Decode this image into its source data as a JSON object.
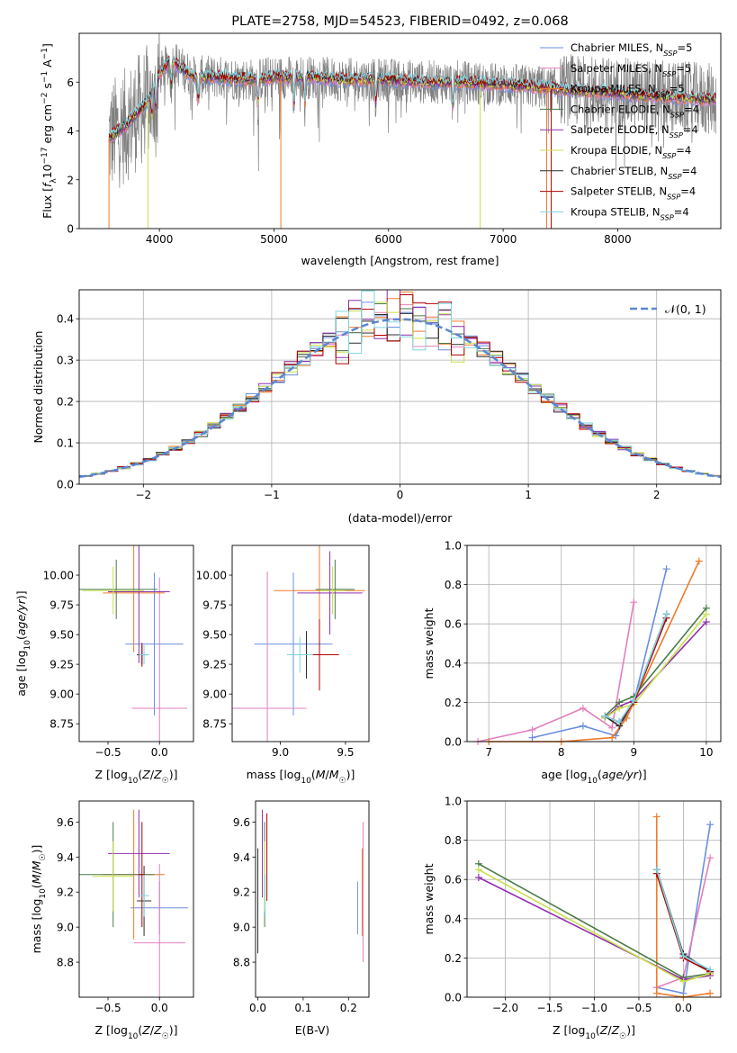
{
  "colors": {
    "Chabrier MILES": "#6a8fdf",
    "Salpeter MILES": "#e37fbd",
    "Kroupa MILES": "#f07b2a",
    "Chabrier ELODIE": "#4a7a4a",
    "Salpeter ELODIE": "#8f2fb0",
    "Kroupa ELODIE": "#c8e04a",
    "Chabrier STELIB": "#2b2b2b",
    "Salpeter STELIB": "#b00000",
    "Kroupa STELIB": "#7fd3df",
    "data_gray": "#808080",
    "normal_dashed": "#5b87d1"
  },
  "chart_data": [
    {
      "id": "spectrum",
      "type": "line",
      "title": "PLATE=2758, MJD=54523, FIBERID=0492, z=0.068",
      "xlabel": "wavelength [Angstrom, rest frame]",
      "ylabel": "Flux [f_λ 10^-17 erg cm^-2 s^-1 A^-1]",
      "xlim": [
        3300,
        8900
      ],
      "ylim": [
        0,
        8
      ],
      "xticks": [
        "4000",
        "5000",
        "6000",
        "7000",
        "8000"
      ],
      "yticks": [
        "0",
        "2",
        "4",
        "6"
      ],
      "legend_position": "top-right",
      "legend": [
        "Chabrier MILES, N_SSP=5",
        "Salpeter MILES, N_SSP=5",
        "Kroupa MILES, N_SSP=5",
        "Chabrier ELODIE, N_SSP=4",
        "Salpeter ELODIE, N_SSP=4",
        "Kroupa ELODIE, N_SSP=4",
        "Chabrier STELIB, N_SSP=4",
        "Salpeter STELIB, N_SSP=4",
        "Kroupa STELIB, N_SSP=4"
      ],
      "model_continuum": {
        "x": [
          3550,
          3700,
          3900,
          4000,
          4100,
          4300,
          4500,
          4800,
          5000,
          5300,
          5600,
          6000,
          6300,
          6600,
          7000,
          7300,
          7500,
          7800,
          8100,
          8400,
          8800
        ],
        "y": [
          3.7,
          4.2,
          5.2,
          6.3,
          6.9,
          6.2,
          6.2,
          6.1,
          6.2,
          6.2,
          6.1,
          6.1,
          6.0,
          6.0,
          5.9,
          5.8,
          5.7,
          5.6,
          5.5,
          5.4,
          5.3
        ]
      },
      "grid": false
    },
    {
      "id": "residuals",
      "type": "histogram",
      "xlabel": "(data-model)/error",
      "ylabel": "Normed distribution",
      "xlim": [
        -2.5,
        2.5
      ],
      "ylim": [
        0,
        0.47
      ],
      "xticks": [
        "−2",
        "−1",
        "0",
        "1",
        "2"
      ],
      "yticks": [
        "0.0",
        "0.1",
        "0.2",
        "0.3",
        "0.4"
      ],
      "legend_position": "top-right",
      "legend": [
        "𝒩(0, 1)"
      ],
      "bin_width": 0.1,
      "grid": true
    },
    {
      "id": "age-vs-Z",
      "type": "errorbar",
      "xlabel": "Z [log10(Z/Z☉)]",
      "ylabel": "age [log10(age/yr)]",
      "xlim": [
        -0.78,
        0.33
      ],
      "ylim": [
        8.6,
        10.25
      ],
      "xticks": [
        "−0.5",
        "0.0"
      ],
      "yticks": [
        "8.75",
        "9.00",
        "9.25",
        "9.50",
        "9.75",
        "10.00"
      ],
      "points": [
        {
          "series": "Chabrier MILES",
          "x": -0.05,
          "xerr": 0.28,
          "y": 9.42,
          "yerr": 0.6
        },
        {
          "series": "Salpeter MILES",
          "x": 0.0,
          "xerr": 0.27,
          "y": 8.88,
          "yerr": 1.1
        },
        {
          "series": "Kroupa MILES",
          "x": -0.25,
          "xerr": 0.3,
          "y": 9.85,
          "yerr": 0.5
        },
        {
          "series": "Chabrier ELODIE",
          "x": -0.42,
          "xerr": 0.4,
          "y": 9.88,
          "yerr": 0.25
        },
        {
          "series": "Salpeter ELODIE",
          "x": -0.2,
          "xerr": 0.3,
          "y": 9.86,
          "yerr": 0.6
        },
        {
          "series": "Kroupa ELODIE",
          "x": -0.45,
          "xerr": 0.3,
          "y": 9.87,
          "yerr": 0.2
        },
        {
          "series": "Chabrier STELIB",
          "x": -0.17,
          "xerr": 0.05,
          "y": 9.33,
          "yerr": 0.08
        },
        {
          "series": "Salpeter STELIB",
          "x": -0.17,
          "xerr": 0.03,
          "y": 9.33,
          "yerr": 0.1
        },
        {
          "series": "Kroupa STELIB",
          "x": -0.15,
          "xerr": 0.05,
          "y": 9.33,
          "yerr": 0.08
        }
      ]
    },
    {
      "id": "age-vs-mass",
      "type": "errorbar",
      "xlabel": "mass [log10(M/M☉)]",
      "ylabel": "",
      "xlim": [
        8.63,
        9.68
      ],
      "ylim": [
        8.6,
        10.25
      ],
      "xticks": [
        "9.0",
        "9.5"
      ],
      "yticks": [
        "8.75",
        "9.00",
        "9.25",
        "9.50",
        "9.75",
        "10.00"
      ],
      "points": [
        {
          "series": "Chabrier MILES",
          "x": 9.1,
          "xerr": 0.3,
          "y": 9.42,
          "yerr": 0.6
        },
        {
          "series": "Salpeter MILES",
          "x": 8.9,
          "xerr": 0.3,
          "y": 8.88,
          "yerr": 1.15
        },
        {
          "series": "Kroupa MILES",
          "x": 9.3,
          "xerr": 0.35,
          "y": 9.87,
          "yerr": 0.4
        },
        {
          "series": "Chabrier ELODIE",
          "x": 9.42,
          "xerr": 0.15,
          "y": 9.88,
          "yerr": 0.25
        },
        {
          "series": "Salpeter ELODIE",
          "x": 9.38,
          "xerr": 0.25,
          "y": 9.85,
          "yerr": 0.35
        },
        {
          "series": "Kroupa ELODIE",
          "x": 9.4,
          "xerr": 0.1,
          "y": 9.87,
          "yerr": 0.2
        },
        {
          "series": "Chabrier STELIB",
          "x": 9.2,
          "xerr": 0.1,
          "y": 9.33,
          "yerr": 0.2
        },
        {
          "series": "Salpeter STELIB",
          "x": 9.3,
          "xerr": 0.15,
          "y": 9.33,
          "yerr": 0.3
        },
        {
          "series": "Kroupa STELIB",
          "x": 9.15,
          "xerr": 0.1,
          "y": 9.33,
          "yerr": 0.15
        }
      ]
    },
    {
      "id": "weight-vs-age",
      "type": "line",
      "xlabel": "age [log10(age/yr)]",
      "ylabel": "mass weight",
      "xlim": [
        6.7,
        10.2
      ],
      "ylim": [
        0,
        1
      ],
      "xticks": [
        "7",
        "8",
        "9",
        "10"
      ],
      "yticks": [
        "0.0",
        "0.2",
        "0.4",
        "0.6",
        "0.8",
        "1.0"
      ],
      "grid": true,
      "series": [
        {
          "name": "Chabrier MILES",
          "x": [
            7.6,
            8.3,
            8.75,
            9.0,
            9.45
          ],
          "y": [
            0.02,
            0.08,
            0.03,
            0.2,
            0.88
          ]
        },
        {
          "name": "Salpeter MILES",
          "x": [
            6.85,
            7.6,
            8.3,
            8.7,
            9.0
          ],
          "y": [
            0.0,
            0.06,
            0.17,
            0.07,
            0.71
          ]
        },
        {
          "name": "Kroupa MILES",
          "x": [
            7.0,
            8.0,
            8.7,
            8.9,
            9.9
          ],
          "y": [
            0.0,
            0.0,
            0.02,
            0.12,
            0.92
          ]
        },
        {
          "name": "Chabrier ELODIE",
          "x": [
            8.6,
            8.8,
            9.0,
            10.0
          ],
          "y": [
            0.13,
            0.2,
            0.23,
            0.68
          ]
        },
        {
          "name": "Salpeter ELODIE",
          "x": [
            8.6,
            8.8,
            9.0,
            10.0
          ],
          "y": [
            0.12,
            0.18,
            0.21,
            0.61
          ]
        },
        {
          "name": "Kroupa ELODIE",
          "x": [
            8.6,
            8.8,
            9.0,
            10.0
          ],
          "y": [
            0.12,
            0.17,
            0.19,
            0.65
          ]
        },
        {
          "name": "Chabrier STELIB",
          "x": [
            8.6,
            8.8,
            9.0,
            9.45
          ],
          "y": [
            0.13,
            0.08,
            0.21,
            0.65
          ]
        },
        {
          "name": "Salpeter STELIB",
          "x": [
            8.6,
            8.8,
            9.0,
            9.45
          ],
          "y": [
            0.13,
            0.1,
            0.2,
            0.63
          ]
        },
        {
          "name": "Kroupa STELIB",
          "x": [
            8.6,
            8.8,
            9.0,
            9.45
          ],
          "y": [
            0.13,
            0.1,
            0.21,
            0.65
          ]
        }
      ]
    },
    {
      "id": "mass-vs-Z",
      "type": "errorbar",
      "xlabel": "Z [log10(Z/Z☉)]",
      "ylabel": "mass [log10(M/M☉)]",
      "xlim": [
        -0.78,
        0.33
      ],
      "ylim": [
        8.6,
        9.72
      ],
      "xticks": [
        "−0.5",
        "0.0"
      ],
      "yticks": [
        "8.8",
        "9.0",
        "9.2",
        "9.4",
        "9.6"
      ],
      "points": [
        {
          "series": "Chabrier MILES",
          "x": 0.0,
          "xerr": 0.28,
          "y": 9.11,
          "yerr": 0.15
        },
        {
          "series": "Salpeter MILES",
          "x": 0.0,
          "xerr": 0.25,
          "y": 8.91,
          "yerr": 0.45
        },
        {
          "series": "Kroupa MILES",
          "x": -0.25,
          "xerr": 0.3,
          "y": 9.3,
          "yerr": 0.37
        },
        {
          "series": "Chabrier ELODIE",
          "x": -0.45,
          "xerr": 0.4,
          "y": 9.3,
          "yerr": 0.3
        },
        {
          "series": "Salpeter ELODIE",
          "x": -0.2,
          "xerr": 0.3,
          "y": 9.42,
          "yerr": 0.25
        },
        {
          "series": "Kroupa ELODIE",
          "x": -0.45,
          "xerr": 0.2,
          "y": 9.29,
          "yerr": 0.2
        },
        {
          "series": "Chabrier STELIB",
          "x": -0.15,
          "xerr": 0.07,
          "y": 9.15,
          "yerr": 0.2
        },
        {
          "series": "Salpeter STELIB",
          "x": -0.17,
          "xerr": 0.03,
          "y": 9.3,
          "yerr": 0.3
        },
        {
          "series": "Kroupa STELIB",
          "x": -0.15,
          "xerr": 0.05,
          "y": 9.18,
          "yerr": 0.12
        }
      ]
    },
    {
      "id": "mass-vs-EBV",
      "type": "errorbar",
      "xlabel": "E(B-V)",
      "ylabel": "",
      "xlim": [
        -0.005,
        0.245
      ],
      "ylim": [
        8.6,
        9.72
      ],
      "xticks": [
        "0.0",
        "0.1",
        "0.2"
      ],
      "yticks": [
        "8.8",
        "9.0",
        "9.2",
        "9.4",
        "9.6"
      ],
      "points": [
        {
          "series": "Chabrier MILES",
          "x": 0.22,
          "y": 9.11,
          "yerr": 0.15
        },
        {
          "series": "Salpeter MILES",
          "x": 0.232,
          "y": 9.2,
          "yerr": 0.4
        },
        {
          "series": "Kroupa MILES",
          "x": 0.23,
          "y": 9.2,
          "yerr": 0.25
        },
        {
          "series": "Chabrier ELODIE",
          "x": 0.015,
          "y": 9.3,
          "yerr": 0.3
        },
        {
          "series": "Salpeter ELODIE",
          "x": 0.01,
          "y": 9.42,
          "yerr": 0.25
        },
        {
          "series": "Kroupa ELODIE",
          "x": 0.015,
          "y": 9.29,
          "yerr": 0.2
        },
        {
          "series": "Chabrier STELIB",
          "x": 0.0,
          "y": 9.15,
          "yerr": 0.3
        },
        {
          "series": "Salpeter STELIB",
          "x": 0.02,
          "y": 9.4,
          "yerr": 0.25
        },
        {
          "series": "Kroupa STELIB",
          "x": 0.016,
          "y": 9.18,
          "yerr": 0.12
        }
      ]
    },
    {
      "id": "weight-vs-Z",
      "type": "line",
      "xlabel": "Z [log10(Z/Z☉)]",
      "ylabel": "mass weight",
      "xlim": [
        -2.43,
        0.42
      ],
      "ylim": [
        0,
        1
      ],
      "xticks": [
        "−2.0",
        "−1.5",
        "−1.0",
        "−0.5",
        "0.0"
      ],
      "yticks": [
        "0.0",
        "0.2",
        "0.4",
        "0.6",
        "0.8",
        "1.0"
      ],
      "grid": true,
      "series": [
        {
          "name": "Chabrier MILES",
          "x": [
            -0.3,
            0.0,
            0.3
          ],
          "y": [
            0.05,
            0.02,
            0.88
          ]
        },
        {
          "name": "Salpeter MILES",
          "x": [
            -0.3,
            0.0,
            0.3
          ],
          "y": [
            0.05,
            0.1,
            0.71
          ]
        },
        {
          "name": "Kroupa MILES",
          "x": [
            -0.3,
            -0.3,
            0.0,
            0.3
          ],
          "y": [
            0.92,
            0.02,
            0.0,
            0.02
          ]
        },
        {
          "name": "Chabrier ELODIE",
          "x": [
            -2.3,
            0.0,
            0.3
          ],
          "y": [
            0.68,
            0.1,
            0.12
          ]
        },
        {
          "name": "Salpeter ELODIE",
          "x": [
            -2.3,
            0.0,
            0.3
          ],
          "y": [
            0.61,
            0.09,
            0.11
          ]
        },
        {
          "name": "Kroupa ELODIE",
          "x": [
            -2.3,
            0.0,
            0.3
          ],
          "y": [
            0.65,
            0.08,
            0.12
          ]
        },
        {
          "name": "Chabrier STELIB",
          "x": [
            -0.3,
            0.0,
            0.3
          ],
          "y": [
            0.65,
            0.22,
            0.13
          ]
        },
        {
          "name": "Salpeter STELIB",
          "x": [
            -0.3,
            0.0,
            0.3
          ],
          "y": [
            0.63,
            0.2,
            0.13
          ]
        },
        {
          "name": "Kroupa STELIB",
          "x": [
            -0.3,
            0.0,
            0.3
          ],
          "y": [
            0.65,
            0.21,
            0.14
          ]
        }
      ]
    }
  ]
}
